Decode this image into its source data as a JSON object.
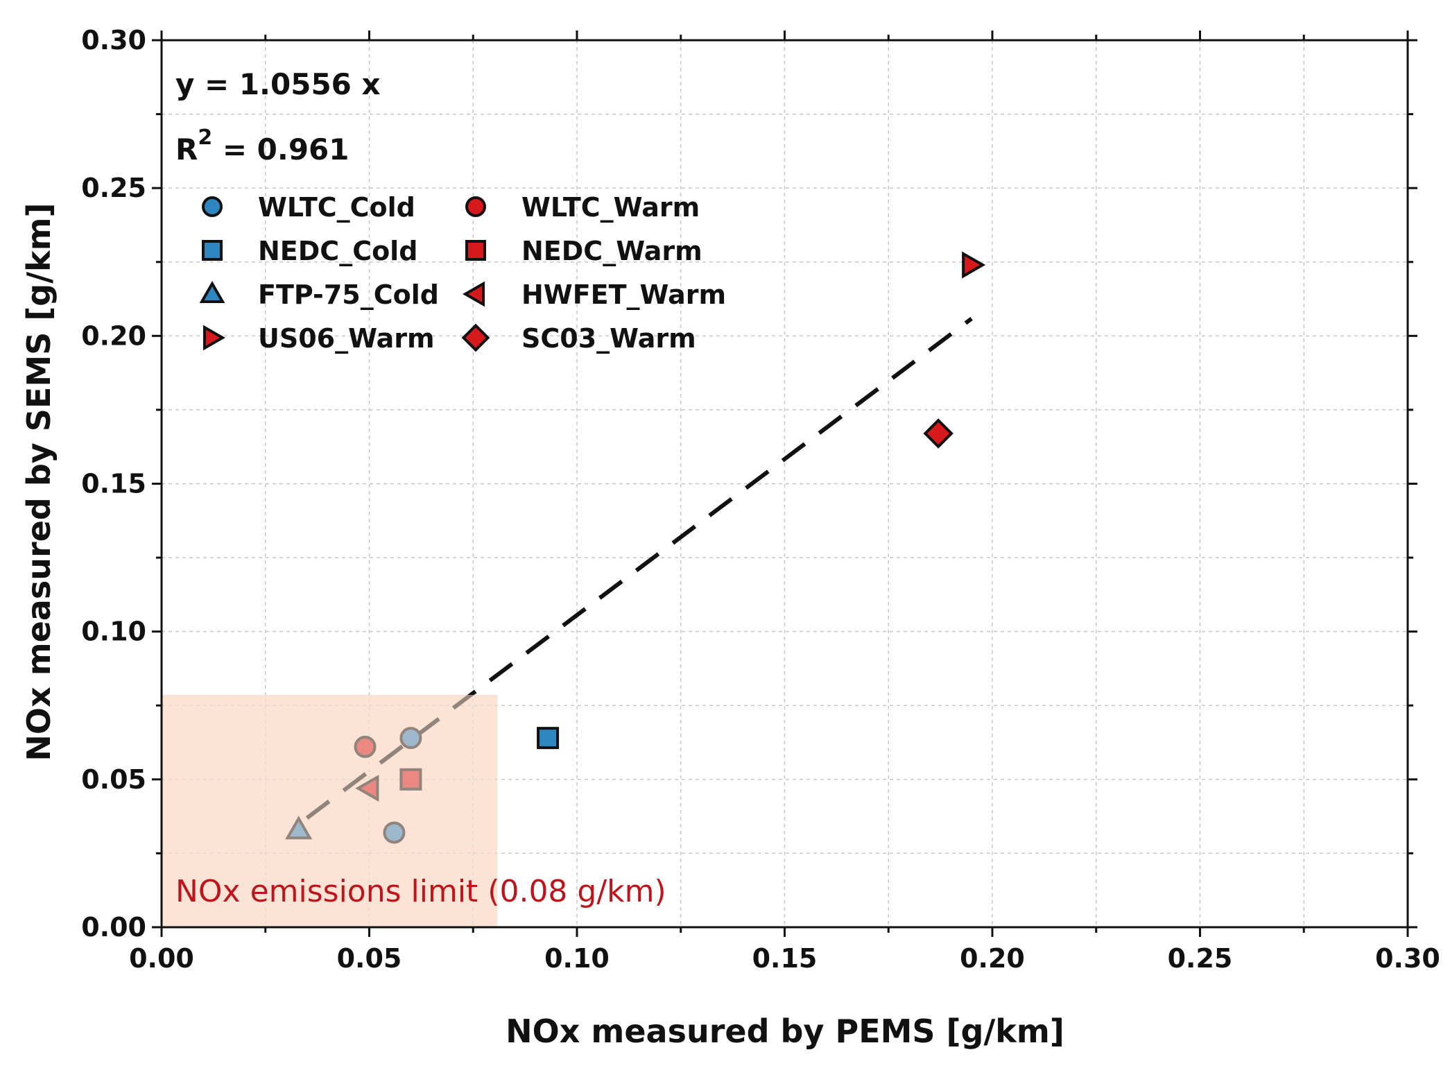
{
  "chart_data": {
    "type": "scatter",
    "xlabel": "NOx measured by PEMS [g/km]",
    "ylabel": "NOx measured by SEMS [g/km]",
    "xlim": [
      0.0,
      0.3
    ],
    "ylim": [
      0.0,
      0.3
    ],
    "x_ticks": [
      "0.00",
      "0.05",
      "0.10",
      "0.15",
      "0.20",
      "0.25",
      "0.30"
    ],
    "y_ticks": [
      "0.00",
      "0.05",
      "0.10",
      "0.15",
      "0.20",
      "0.25",
      "0.30"
    ],
    "grid": true,
    "legend_position": "top-left",
    "colors": {
      "cold": "#2e86c1",
      "warm": "#d7191c",
      "limit_fill": "#fbe3d6",
      "limit_text": "#c0141c"
    },
    "regression": {
      "equation_text": "y = 1.0556 x",
      "r2_prefix": "R",
      "r2_sup": "2",
      "r2_value": " = 0.961",
      "slope": 1.0556,
      "x_range": [
        0.035,
        0.195
      ]
    },
    "limit": {
      "label": "NOx emissions limit (0.08 g/km)",
      "value": 0.08
    },
    "series": [
      {
        "name": "WLTC_Cold",
        "marker": "circle",
        "color": "#2e86c1",
        "points": [
          {
            "x": 0.056,
            "y": 0.032
          },
          {
            "x": 0.06,
            "y": 0.064
          }
        ]
      },
      {
        "name": "WLTC_Warm",
        "marker": "circle",
        "color": "#d7191c",
        "points": [
          {
            "x": 0.049,
            "y": 0.061
          }
        ]
      },
      {
        "name": "NEDC_Cold",
        "marker": "square",
        "color": "#2e86c1",
        "points": [
          {
            "x": 0.093,
            "y": 0.064
          }
        ]
      },
      {
        "name": "NEDC_Warm",
        "marker": "square",
        "color": "#d7191c",
        "points": [
          {
            "x": 0.06,
            "y": 0.05
          }
        ]
      },
      {
        "name": "FTP-75_Cold",
        "marker": "triangle-up",
        "color": "#2e86c1",
        "points": [
          {
            "x": 0.033,
            "y": 0.033
          }
        ]
      },
      {
        "name": "HWFET_Warm",
        "marker": "triangle-left",
        "color": "#d7191c",
        "points": [
          {
            "x": 0.05,
            "y": 0.047
          }
        ]
      },
      {
        "name": "US06_Warm",
        "marker": "triangle-right",
        "color": "#d7191c",
        "points": [
          {
            "x": 0.195,
            "y": 0.224
          }
        ]
      },
      {
        "name": "SC03_Warm",
        "marker": "diamond",
        "color": "#d7191c",
        "points": [
          {
            "x": 0.187,
            "y": 0.167
          }
        ]
      }
    ]
  }
}
